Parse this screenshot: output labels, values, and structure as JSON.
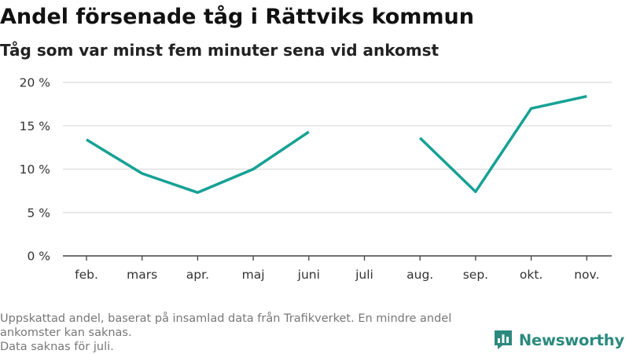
{
  "header": {
    "title": "Andel försenade tåg i Rättviks kommun",
    "subtitle": "Tåg som var minst fem minuter sena vid ankomst"
  },
  "chart_data": {
    "type": "line",
    "title": "Andel försenade tåg i Rättviks kommun",
    "subtitle": "Tåg som var minst fem minuter sena vid ankomst",
    "categories": [
      "feb.",
      "mars",
      "apr.",
      "maj",
      "juni",
      "juli",
      "aug.",
      "sep.",
      "okt.",
      "nov."
    ],
    "series": [
      {
        "values": [
          13.4,
          9.5,
          7.3,
          10.0,
          14.3,
          null,
          13.6,
          7.4,
          17.0,
          18.4
        ]
      }
    ],
    "ylim": [
      0,
      20
    ],
    "yticks": [
      0,
      5,
      10,
      15,
      20
    ],
    "ytick_labels": [
      "0 %",
      "5 %",
      "10 %",
      "15 %",
      "20 %"
    ],
    "grid": true,
    "line_color": "#16a195"
  },
  "footer": {
    "note_line1": "Uppskattad andel, baserat på insamlad data från Trafikverket. En mindre andel",
    "note_line2": "ankomster kan saknas.",
    "note_line3": "Data saknas för juli."
  },
  "brand": {
    "name": "Newsworthy",
    "logo_icon": "bar-chart-speech-bubble-icon",
    "color": "#2b8a7e"
  }
}
